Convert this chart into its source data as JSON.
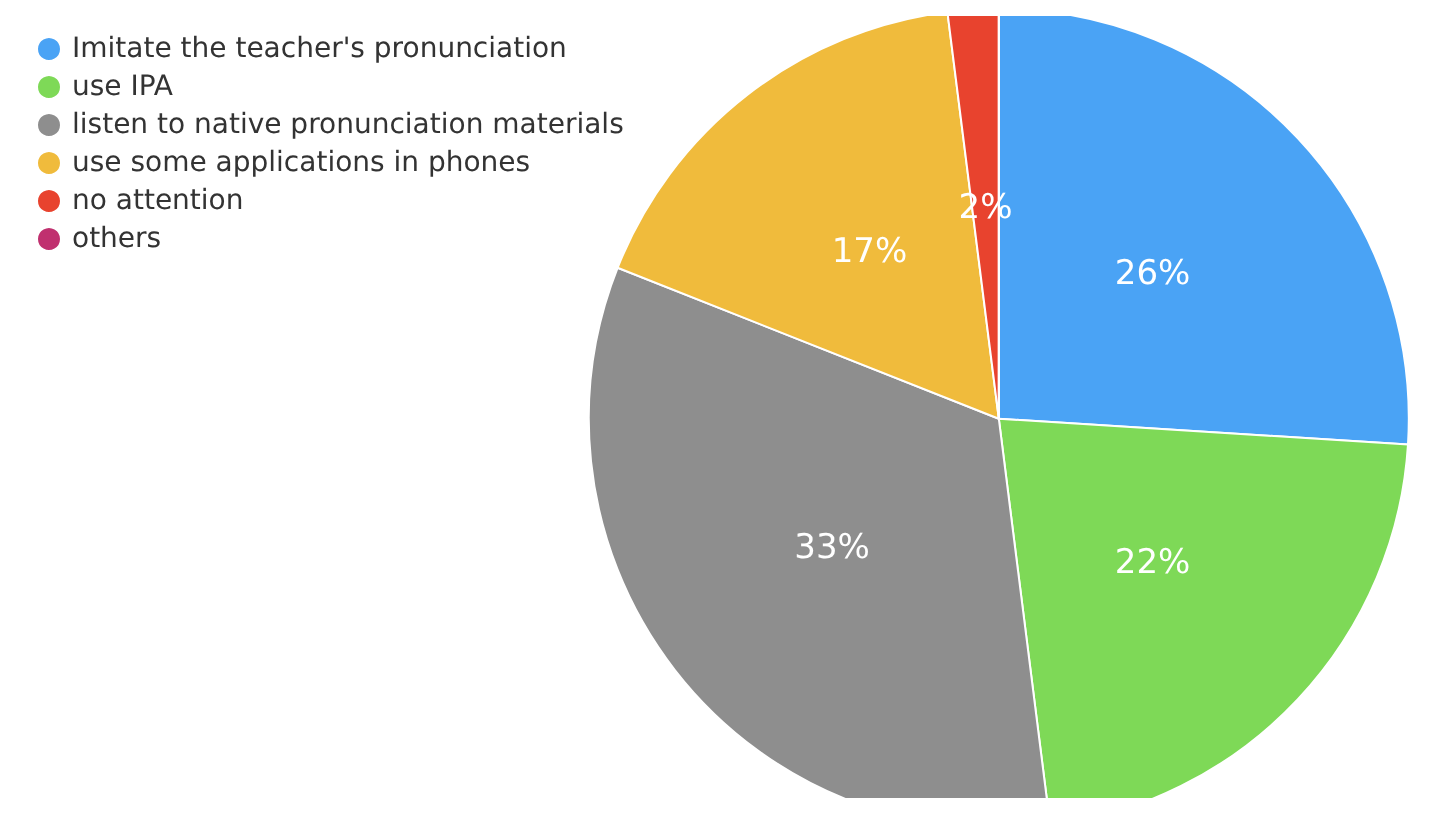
{
  "chart_data": {
    "type": "pie",
    "categories": [
      "Imitate the teacher's pronunciation",
      "use IPA",
      "listen to native pronunciation materials",
      "use some applications in phones",
      "no attention",
      "others"
    ],
    "values": [
      26,
      22,
      33,
      17,
      2,
      0
    ],
    "colors": [
      "#4aa3f5",
      "#7ed957",
      "#8e8e8e",
      "#f0bb3c",
      "#e8432e",
      "#c0306f"
    ],
    "value_labels": [
      "26%",
      "22%",
      "33%",
      "17%",
      "2%",
      null
    ],
    "legend": "top left"
  }
}
